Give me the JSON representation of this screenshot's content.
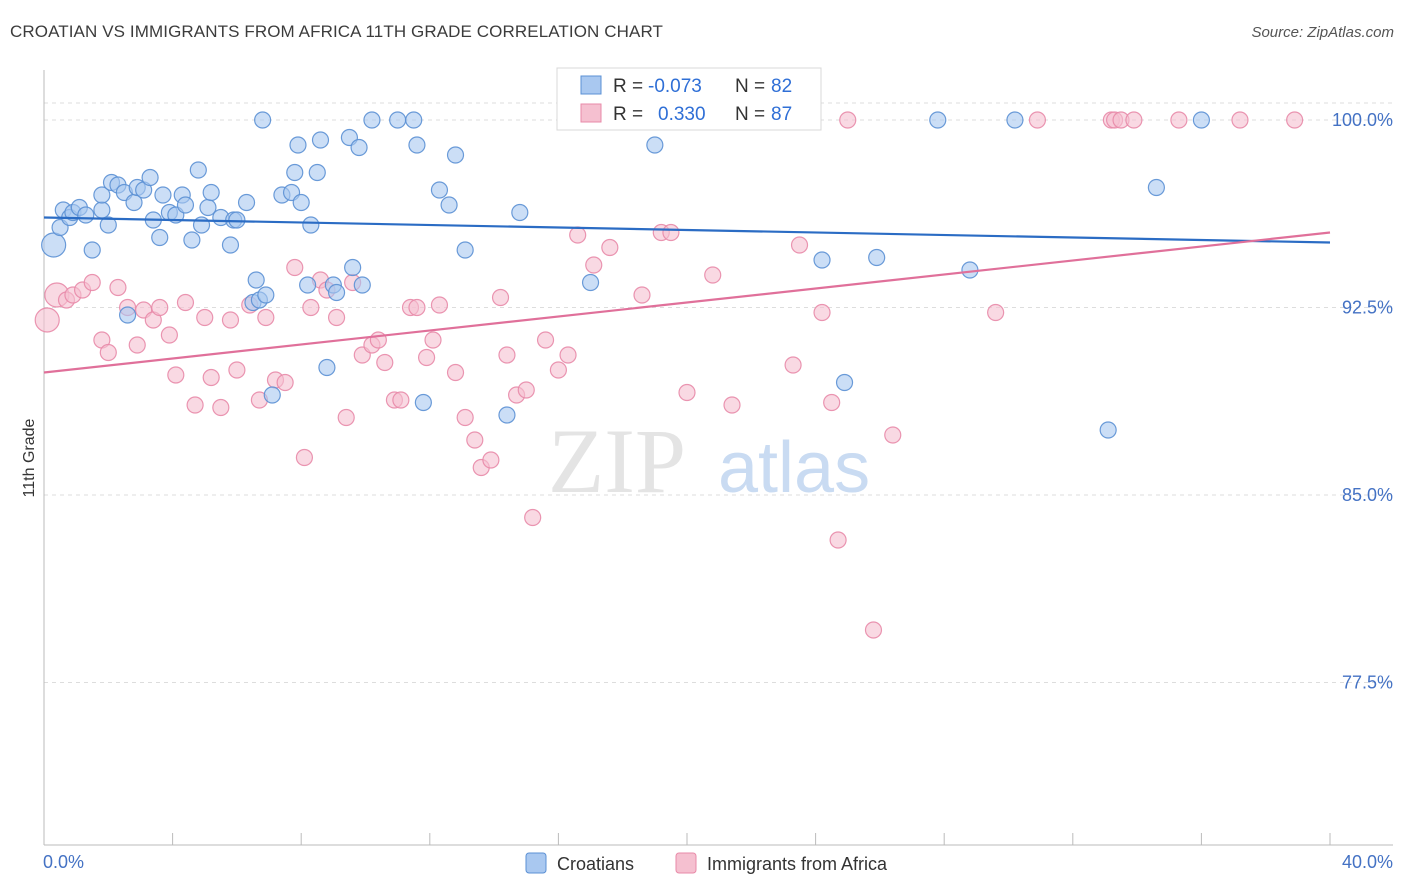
{
  "title": "CROATIAN VS IMMIGRANTS FROM AFRICA 11TH GRADE CORRELATION CHART",
  "source": "Source: ZipAtlas.com",
  "watermark": {
    "zip": "ZIP",
    "atlas": "atlas"
  },
  "colors": {
    "blue_fill": "#a9c8f0",
    "blue_stroke": "#5b90d4",
    "blue_line": "#2b6cc4",
    "pink_fill": "#f5c0d0",
    "pink_stroke": "#e88aa8",
    "pink_line": "#e0709a",
    "tick_text": "#4472c4",
    "grid": "#dddddd"
  },
  "legend_top": [
    {
      "r_label": "R =",
      "r_value": "-0.073",
      "n_label": "N =",
      "n_value": "82"
    },
    {
      "r_label": "R =",
      "r_value": "0.330",
      "n_label": "N =",
      "n_value": "87"
    }
  ],
  "chart_data": {
    "type": "scatter",
    "title": "CROATIAN VS IMMIGRANTS FROM AFRICA 11TH GRADE CORRELATION CHART",
    "xlabel": "",
    "ylabel": "11th Grade",
    "xlim": [
      0,
      40
    ],
    "ylim": [
      71.0,
      102.0
    ],
    "x_tick_labels": [
      "0.0%",
      "40.0%"
    ],
    "y_ticks": [
      77.5,
      85.0,
      92.5,
      100.0
    ],
    "y_tick_labels": [
      "77.5%",
      "85.0%",
      "92.5%",
      "100.0%"
    ],
    "grid": "horizontal dashed",
    "legend_placement": "bottom-center",
    "series": [
      {
        "name": "Croatians",
        "color": "#a9c8f0",
        "trend": {
          "x": [
            0,
            40
          ],
          "y": [
            96.1,
            95.1
          ]
        },
        "points": [
          [
            0.3,
            95.0
          ],
          [
            0.5,
            95.7
          ],
          [
            0.6,
            96.4
          ],
          [
            0.8,
            96.1
          ],
          [
            0.9,
            96.3
          ],
          [
            1.1,
            96.5
          ],
          [
            1.3,
            96.2
          ],
          [
            1.5,
            94.8
          ],
          [
            1.8,
            96.4
          ],
          [
            1.8,
            97.0
          ],
          [
            2.0,
            95.8
          ],
          [
            2.1,
            97.5
          ],
          [
            2.3,
            97.4
          ],
          [
            2.5,
            97.1
          ],
          [
            2.6,
            92.2
          ],
          [
            2.8,
            96.7
          ],
          [
            2.9,
            97.3
          ],
          [
            3.1,
            97.2
          ],
          [
            3.3,
            97.7
          ],
          [
            3.4,
            96.0
          ],
          [
            3.6,
            95.3
          ],
          [
            3.7,
            97.0
          ],
          [
            3.9,
            96.3
          ],
          [
            4.1,
            96.2
          ],
          [
            4.3,
            97.0
          ],
          [
            4.4,
            96.6
          ],
          [
            4.6,
            95.2
          ],
          [
            4.8,
            98.0
          ],
          [
            4.9,
            95.8
          ],
          [
            5.1,
            96.5
          ],
          [
            5.2,
            97.1
          ],
          [
            5.5,
            96.1
          ],
          [
            5.8,
            95.0
          ],
          [
            5.9,
            96.0
          ],
          [
            6.0,
            96.0
          ],
          [
            6.3,
            96.7
          ],
          [
            6.5,
            92.7
          ],
          [
            6.6,
            93.6
          ],
          [
            6.7,
            92.8
          ],
          [
            6.8,
            100.0
          ],
          [
            6.9,
            93.0
          ],
          [
            7.1,
            89.0
          ],
          [
            7.4,
            97.0
          ],
          [
            7.7,
            97.1
          ],
          [
            7.8,
            97.9
          ],
          [
            7.9,
            99.0
          ],
          [
            8.0,
            96.7
          ],
          [
            8.2,
            93.4
          ],
          [
            8.3,
            95.8
          ],
          [
            8.5,
            97.9
          ],
          [
            8.6,
            99.2
          ],
          [
            8.8,
            90.1
          ],
          [
            9.0,
            93.4
          ],
          [
            9.1,
            93.1
          ],
          [
            9.5,
            99.3
          ],
          [
            9.6,
            94.1
          ],
          [
            9.8,
            98.9
          ],
          [
            9.9,
            93.4
          ],
          [
            10.2,
            100.0
          ],
          [
            11.0,
            100.0
          ],
          [
            11.5,
            100.0
          ],
          [
            11.6,
            99.0
          ],
          [
            11.8,
            88.7
          ],
          [
            12.3,
            97.2
          ],
          [
            12.6,
            96.6
          ],
          [
            12.8,
            98.6
          ],
          [
            13.1,
            94.8
          ],
          [
            14.4,
            88.2
          ],
          [
            14.8,
            96.3
          ],
          [
            17.0,
            93.5
          ],
          [
            17.7,
            100.0
          ],
          [
            19.0,
            99.0
          ],
          [
            23.0,
            100.0
          ],
          [
            24.2,
            94.4
          ],
          [
            24.9,
            89.5
          ],
          [
            25.9,
            94.5
          ],
          [
            27.8,
            100.0
          ],
          [
            28.8,
            94.0
          ],
          [
            30.2,
            100.0
          ],
          [
            33.1,
            87.6
          ],
          [
            34.6,
            97.3
          ],
          [
            36.0,
            100.0
          ]
        ]
      },
      {
        "name": "Immigrants from Africa",
        "color": "#f5c0d0",
        "trend": {
          "x": [
            0,
            40
          ],
          "y": [
            89.9,
            95.5
          ]
        },
        "points": [
          [
            0.1,
            92.0
          ],
          [
            0.4,
            93.0
          ],
          [
            0.7,
            92.8
          ],
          [
            0.9,
            93.0
          ],
          [
            1.2,
            93.2
          ],
          [
            1.5,
            93.5
          ],
          [
            1.8,
            91.2
          ],
          [
            2.0,
            90.7
          ],
          [
            2.3,
            93.3
          ],
          [
            2.6,
            92.5
          ],
          [
            2.9,
            91.0
          ],
          [
            3.1,
            92.4
          ],
          [
            3.4,
            92.0
          ],
          [
            3.6,
            92.5
          ],
          [
            3.9,
            91.4
          ],
          [
            4.1,
            89.8
          ],
          [
            4.4,
            92.7
          ],
          [
            4.7,
            88.6
          ],
          [
            5.0,
            92.1
          ],
          [
            5.2,
            89.7
          ],
          [
            5.5,
            88.5
          ],
          [
            5.8,
            92.0
          ],
          [
            6.0,
            90.0
          ],
          [
            6.4,
            92.6
          ],
          [
            6.7,
            88.8
          ],
          [
            6.9,
            92.1
          ],
          [
            7.2,
            89.6
          ],
          [
            7.5,
            89.5
          ],
          [
            7.8,
            94.1
          ],
          [
            8.1,
            86.5
          ],
          [
            8.3,
            92.5
          ],
          [
            8.6,
            93.6
          ],
          [
            8.8,
            93.2
          ],
          [
            9.1,
            92.1
          ],
          [
            9.4,
            88.1
          ],
          [
            9.6,
            93.5
          ],
          [
            9.9,
            90.6
          ],
          [
            10.2,
            91.0
          ],
          [
            10.4,
            91.2
          ],
          [
            10.6,
            90.3
          ],
          [
            10.9,
            88.8
          ],
          [
            11.1,
            88.8
          ],
          [
            11.4,
            92.5
          ],
          [
            11.6,
            92.5
          ],
          [
            11.9,
            90.5
          ],
          [
            12.1,
            91.2
          ],
          [
            12.3,
            92.6
          ],
          [
            12.8,
            89.9
          ],
          [
            13.1,
            88.1
          ],
          [
            13.4,
            87.2
          ],
          [
            13.6,
            86.1
          ],
          [
            13.9,
            86.4
          ],
          [
            14.2,
            92.9
          ],
          [
            14.4,
            90.6
          ],
          [
            14.7,
            89.0
          ],
          [
            15.0,
            89.2
          ],
          [
            15.2,
            84.1
          ],
          [
            15.6,
            91.2
          ],
          [
            16.0,
            90.0
          ],
          [
            16.3,
            90.6
          ],
          [
            16.6,
            95.4
          ],
          [
            17.1,
            94.2
          ],
          [
            17.6,
            94.9
          ],
          [
            17.9,
            100.0
          ],
          [
            18.6,
            93.0
          ],
          [
            19.2,
            95.5
          ],
          [
            19.5,
            95.5
          ],
          [
            20.0,
            89.1
          ],
          [
            20.8,
            93.8
          ],
          [
            21.4,
            88.6
          ],
          [
            23.3,
            90.2
          ],
          [
            23.5,
            95.0
          ],
          [
            24.2,
            92.3
          ],
          [
            24.5,
            88.7
          ],
          [
            24.7,
            83.2
          ],
          [
            25.0,
            100.0
          ],
          [
            25.8,
            79.6
          ],
          [
            26.4,
            87.4
          ],
          [
            29.6,
            92.3
          ],
          [
            30.9,
            100.0
          ],
          [
            33.2,
            100.0
          ],
          [
            33.3,
            100.0
          ],
          [
            33.5,
            100.0
          ],
          [
            33.9,
            100.0
          ],
          [
            35.3,
            100.0
          ],
          [
            37.2,
            100.0
          ],
          [
            38.9,
            100.0
          ]
        ]
      }
    ]
  }
}
